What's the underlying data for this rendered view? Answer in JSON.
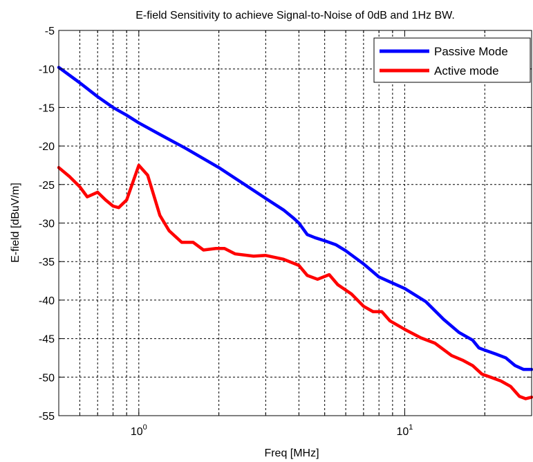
{
  "chart_data": {
    "type": "line",
    "title": "E-field Sensitivity to achieve Signal-to-Noise of 0dB and 1Hz BW.",
    "xlabel": "Freq [MHz]",
    "ylabel": "E-field [dBuV/m]",
    "xscale": "log",
    "xlim": [
      0.5,
      30
    ],
    "ylim": [
      -55,
      -5
    ],
    "x_ticks": [
      1,
      10
    ],
    "x_tick_labels": [
      {
        "base": "10",
        "exp": "0"
      },
      {
        "base": "10",
        "exp": "1"
      }
    ],
    "y_ticks": [
      -5,
      -10,
      -15,
      -20,
      -25,
      -30,
      -35,
      -40,
      -45,
      -50,
      -55
    ],
    "grid": true,
    "legend_position": "top-right",
    "series": [
      {
        "name": "Passive Mode",
        "color": "#0000ff",
        "points": [
          [
            0.5,
            -9.8
          ],
          [
            0.6,
            -11.8
          ],
          [
            0.7,
            -13.6
          ],
          [
            0.8,
            -15.0
          ],
          [
            0.9,
            -16.0
          ],
          [
            1.0,
            -17.0
          ],
          [
            1.2,
            -18.5
          ],
          [
            1.5,
            -20.3
          ],
          [
            2.0,
            -22.8
          ],
          [
            2.5,
            -25.0
          ],
          [
            3.0,
            -26.8
          ],
          [
            3.5,
            -28.3
          ],
          [
            3.8,
            -29.3
          ],
          [
            4.0,
            -30.0
          ],
          [
            4.3,
            -31.5
          ],
          [
            4.6,
            -31.9
          ],
          [
            5.0,
            -32.3
          ],
          [
            5.5,
            -32.8
          ],
          [
            6.0,
            -33.6
          ],
          [
            7.0,
            -35.3
          ],
          [
            8.0,
            -37.0
          ],
          [
            10.0,
            -38.5
          ],
          [
            12.0,
            -40.2
          ],
          [
            14.0,
            -42.5
          ],
          [
            16.0,
            -44.2
          ],
          [
            18.0,
            -45.2
          ],
          [
            19.0,
            -46.2
          ],
          [
            20.0,
            -46.5
          ],
          [
            22.0,
            -47.0
          ],
          [
            24.0,
            -47.5
          ],
          [
            26.0,
            -48.5
          ],
          [
            28.0,
            -49.0
          ],
          [
            30.0,
            -49.0
          ]
        ]
      },
      {
        "name": "Active mode",
        "color": "#ff0000",
        "points": [
          [
            0.5,
            -22.8
          ],
          [
            0.55,
            -24.0
          ],
          [
            0.6,
            -25.3
          ],
          [
            0.64,
            -26.6
          ],
          [
            0.7,
            -26.0
          ],
          [
            0.75,
            -27.0
          ],
          [
            0.8,
            -27.8
          ],
          [
            0.84,
            -28.0
          ],
          [
            0.9,
            -27.0
          ],
          [
            1.0,
            -22.5
          ],
          [
            1.08,
            -23.8
          ],
          [
            1.2,
            -29.0
          ],
          [
            1.3,
            -31.0
          ],
          [
            1.45,
            -32.5
          ],
          [
            1.6,
            -32.5
          ],
          [
            1.75,
            -33.5
          ],
          [
            1.95,
            -33.3
          ],
          [
            2.1,
            -33.3
          ],
          [
            2.3,
            -34.0
          ],
          [
            2.7,
            -34.3
          ],
          [
            3.0,
            -34.2
          ],
          [
            3.5,
            -34.7
          ],
          [
            4.0,
            -35.5
          ],
          [
            4.3,
            -36.8
          ],
          [
            4.7,
            -37.3
          ],
          [
            5.2,
            -36.7
          ],
          [
            5.6,
            -38.0
          ],
          [
            6.3,
            -39.2
          ],
          [
            7.0,
            -40.8
          ],
          [
            7.6,
            -41.5
          ],
          [
            8.2,
            -41.5
          ],
          [
            8.8,
            -42.7
          ],
          [
            10.0,
            -43.8
          ],
          [
            11.5,
            -44.9
          ],
          [
            13.0,
            -45.6
          ],
          [
            15.0,
            -47.2
          ],
          [
            16.5,
            -47.8
          ],
          [
            18.0,
            -48.5
          ],
          [
            19.5,
            -49.6
          ],
          [
            21.0,
            -50.0
          ],
          [
            23.0,
            -50.5
          ],
          [
            25.0,
            -51.2
          ],
          [
            27.0,
            -52.5
          ],
          [
            28.5,
            -52.8
          ],
          [
            30.0,
            -52.6
          ]
        ]
      }
    ]
  }
}
